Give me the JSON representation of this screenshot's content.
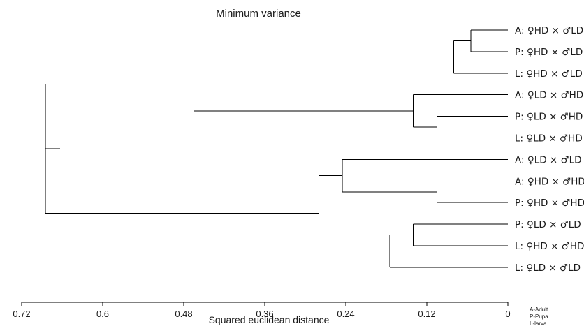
{
  "chart_data": {
    "type": "dendrogram",
    "title": "Minimum variance",
    "xlabel": "Squared euclidean distance",
    "xlim": [
      0.72,
      0
    ],
    "x_ticks": [
      "0.72",
      "0.6",
      "0.48",
      "0.36",
      "0.24",
      "0.12",
      "0"
    ],
    "x_tick_values": [
      0.72,
      0.6,
      0.48,
      0.36,
      0.24,
      0.12,
      0
    ],
    "leaves": [
      "A: ♀HD × ♂LD",
      "P: ♀HD × ♂LD",
      "L: ♀HD × ♂LD",
      "A: ♀LD × ♂HD",
      "P: ♀LD × ♂HD",
      "L: ♀LD × ♂HD",
      "A: ♀LD × ♂LD",
      "A: ♀HD × ♂HD",
      "P: ♀HD × ♂HD",
      "P: ♀LD × ♂LD",
      "L: ♀HD × ♂HD",
      "L: ♀LD × ♂LD"
    ],
    "merges": [
      {
        "id": "m1",
        "left": "L0",
        "right": "L1",
        "height": 0.055
      },
      {
        "id": "m2",
        "left": "m1",
        "right": "L2",
        "height": 0.08
      },
      {
        "id": "m3",
        "left": "L4",
        "right": "L5",
        "height": 0.105
      },
      {
        "id": "m4",
        "left": "L3",
        "right": "m3",
        "height": 0.14
      },
      {
        "id": "m5",
        "left": "m2",
        "right": "m4",
        "height": 0.465
      },
      {
        "id": "m6",
        "left": "L7",
        "right": "L8",
        "height": 0.105
      },
      {
        "id": "m7",
        "left": "L6",
        "right": "m6",
        "height": 0.245
      },
      {
        "id": "m8",
        "left": "L9",
        "right": "L10",
        "height": 0.14
      },
      {
        "id": "m9",
        "left": "m8",
        "right": "L11",
        "height": 0.175
      },
      {
        "id": "m10",
        "left": "m7",
        "right": "m9",
        "height": 0.28
      },
      {
        "id": "m11",
        "left": "m5",
        "right": "m10",
        "height": 0.685
      }
    ]
  },
  "legend": {
    "lines": [
      "A-Adult",
      "P-Pupa",
      "L-larva"
    ]
  }
}
